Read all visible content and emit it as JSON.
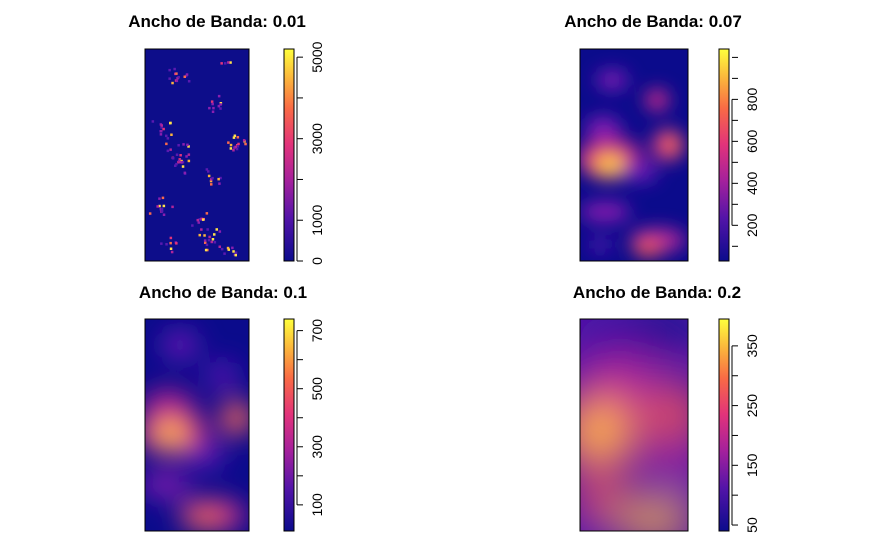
{
  "chart_data": [
    {
      "type": "heatmap",
      "title": "Ancho de Banda: 0.01",
      "zlim": [
        0,
        5200
      ],
      "legend_ticks": [
        "0",
        "1000",
        "3000",
        "5000"
      ],
      "legend_tick_values": [
        0,
        1000,
        3000,
        5000
      ],
      "legend_minor_ticks": [
        2000,
        4000
      ],
      "colormap": [
        "#0b0b8c",
        "#8a1eb0",
        "#e2337a",
        "#f5731d",
        "#fce34b",
        "#ffff3c"
      ],
      "background_color": "#0d0d8a"
    },
    {
      "type": "heatmap",
      "title": "Ancho de Banda: 0.07",
      "zlim": [
        30,
        1040
      ],
      "legend_ticks": [
        "200",
        "400",
        "600",
        "800"
      ],
      "legend_tick_values": [
        200,
        400,
        600,
        800
      ],
      "legend_minor_ticks": [
        100,
        300,
        500,
        700,
        900,
        1000
      ],
      "colormap": [
        "#0b0b8c",
        "#8a1eb0",
        "#e2337a",
        "#f5731d",
        "#fce34b",
        "#ffff3c"
      ]
    },
    {
      "type": "heatmap",
      "title": "Ancho de Banda: 0.1",
      "zlim": [
        10,
        740
      ],
      "legend_ticks": [
        "100",
        "300",
        "500",
        "700"
      ],
      "legend_tick_values": [
        100,
        300,
        500,
        700
      ],
      "legend_minor_ticks": [
        200,
        400,
        600
      ],
      "colormap": [
        "#0b0b8c",
        "#8a1eb0",
        "#e2337a",
        "#f5731d",
        "#fce34b",
        "#ffff3c"
      ]
    },
    {
      "type": "heatmap",
      "title": "Ancho de Banda: 0.2",
      "zlim": [
        40,
        395
      ],
      "legend_ticks": [
        "50",
        "150",
        "250",
        "350"
      ],
      "legend_tick_values": [
        50,
        150,
        250,
        350
      ],
      "legend_minor_ticks": [
        100,
        200,
        300
      ],
      "colormap": [
        "#0b0b8c",
        "#8a1eb0",
        "#e2337a",
        "#f5731d",
        "#fce34b",
        "#ffff3c"
      ]
    }
  ]
}
